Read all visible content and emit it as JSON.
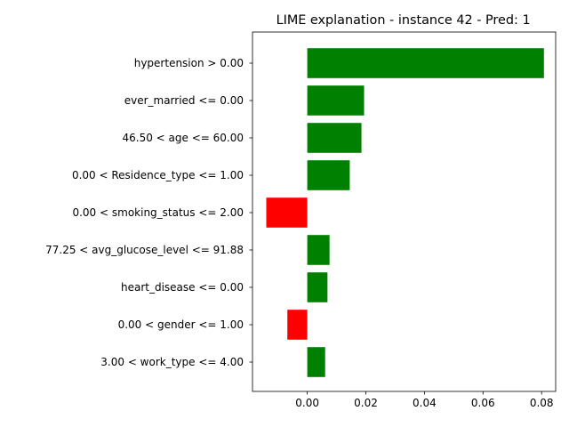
{
  "chart_data": {
    "type": "bar",
    "orientation": "horizontal",
    "title": "LIME explanation - instance 42 - Pred: 1",
    "xlabel": "",
    "ylabel": "",
    "categories": [
      "hypertension > 0.00",
      "ever_married <= 0.00",
      "46.50 < age <= 60.00",
      "0.00 < Residence_type <= 1.00",
      "0.00 < smoking_status <= 2.00",
      "77.25 < avg_glucose_level <= 91.88",
      "heart_disease <= 0.00",
      "0.00 < gender <= 1.00",
      "3.00 < work_type <= 4.00"
    ],
    "values": [
      0.0808,
      0.0194,
      0.0185,
      0.0145,
      -0.014,
      0.0076,
      0.0069,
      -0.0068,
      0.0061
    ],
    "xlim": [
      -0.0187,
      0.0848
    ],
    "xticks": [
      0.0,
      0.02,
      0.04,
      0.06,
      0.08
    ],
    "xtick_labels": [
      "0.00",
      "0.02",
      "0.04",
      "0.06",
      "0.08"
    ],
    "grid": false,
    "legend": "none",
    "colors": {
      "positive": "#008000",
      "negative": "#ff0000",
      "axis": "#000000"
    }
  }
}
